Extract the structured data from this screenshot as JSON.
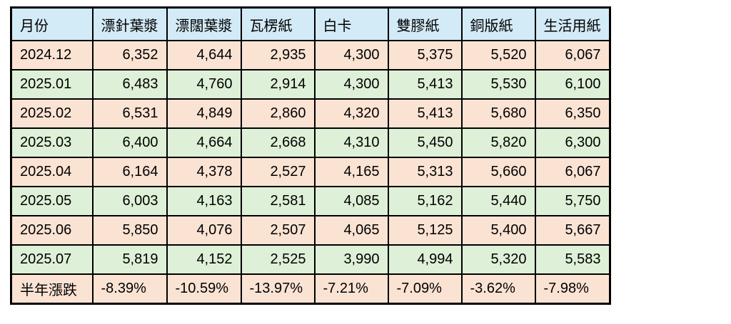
{
  "chart_data": {
    "type": "table",
    "columns": [
      "月份",
      "漂針葉漿",
      "漂闊葉漿",
      "瓦楞紙",
      "白卡",
      "雙膠紙",
      "銅版紙",
      "生活用紙"
    ],
    "rows": [
      {
        "month": "2024.12",
        "values": [
          "6,352",
          "4,644",
          "2,935",
          "4,300",
          "5,375",
          "5,520",
          "6,067"
        ]
      },
      {
        "month": "2025.01",
        "values": [
          "6,483",
          "4,760",
          "2,914",
          "4,300",
          "5,413",
          "5,530",
          "6,100"
        ]
      },
      {
        "month": "2025.02",
        "values": [
          "6,531",
          "4,849",
          "2,860",
          "4,320",
          "5,413",
          "5,680",
          "6,350"
        ]
      },
      {
        "month": "2025.03",
        "values": [
          "6,400",
          "4,664",
          "2,668",
          "4,310",
          "5,450",
          "5,820",
          "6,300"
        ]
      },
      {
        "month": "2025.04",
        "values": [
          "6,164",
          "4,378",
          "2,527",
          "4,165",
          "5,313",
          "5,660",
          "6,067"
        ]
      },
      {
        "month": "2025.05",
        "values": [
          "6,003",
          "4,163",
          "2,581",
          "4,085",
          "5,162",
          "5,440",
          "5,750"
        ]
      },
      {
        "month": "2025.06",
        "values": [
          "5,850",
          "4,076",
          "2,507",
          "4,065",
          "5,125",
          "5,400",
          "5,667"
        ]
      },
      {
        "month": "2025.07",
        "values": [
          "5,819",
          "4,152",
          "2,525",
          "3,990",
          "4,994",
          "5,320",
          "5,583"
        ]
      }
    ],
    "summary_row": {
      "label": "半年漲跌",
      "values": [
        "-8.39%",
        "-10.59%",
        "-13.97%",
        "-7.21%",
        "-7.09%",
        "-3.62%",
        "-7.98%"
      ]
    }
  },
  "colors": {
    "header_bg": "#d3eaf7",
    "row_peach_bg": "#fbe3d4",
    "row_green_bg": "#def0d7",
    "border": "#000000",
    "text": "#000000"
  }
}
